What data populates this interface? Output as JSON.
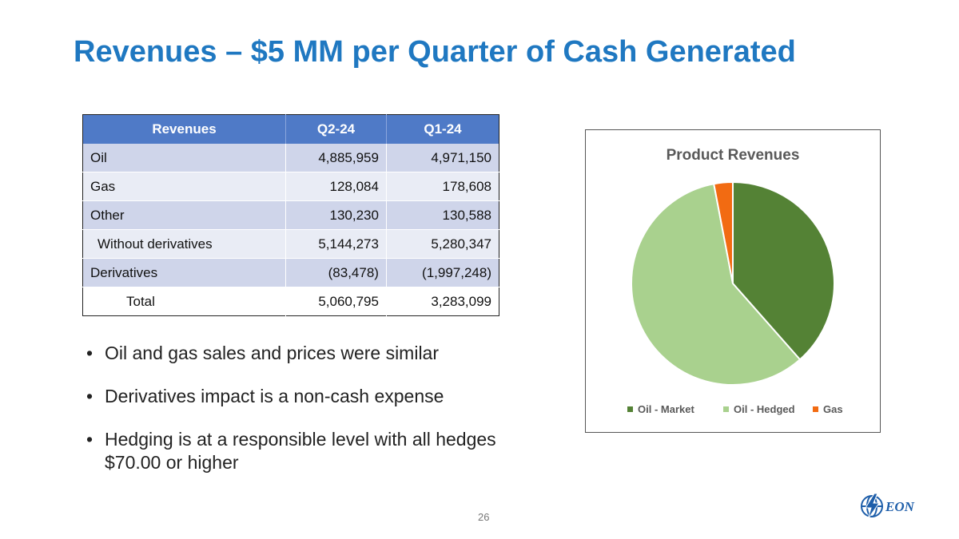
{
  "title": "Revenues – $5 MM per Quarter of Cash Generated",
  "table": {
    "headers": [
      "Revenues",
      "Q2-24",
      "Q1-24"
    ],
    "rows": [
      {
        "label": "Oil",
        "q2": "4,885,959",
        "q1": "4,971,150"
      },
      {
        "label": "Gas",
        "q2": "128,084",
        "q1": "178,608"
      },
      {
        "label": "Other",
        "q2": "130,230",
        "q1": "130,588"
      },
      {
        "label": "Without derivatives",
        "q2": "5,144,273",
        "q1": "5,280,347"
      },
      {
        "label": "Derivatives",
        "q2": "(83,478)",
        "q1": "(1,997,248)"
      },
      {
        "label": "Total",
        "q2": "5,060,795",
        "q1": "3,283,099"
      }
    ]
  },
  "bullets": [
    "Oil and gas sales and prices were similar",
    "Derivatives impact is a non-cash expense",
    "Hedging is at a responsible level with all hedges $70.00 or higher"
  ],
  "bullet_glyph": "•",
  "chart_data": {
    "type": "pie",
    "title": "Product Revenues",
    "categories": [
      "Oil - Market",
      "Oil - Hedged",
      "Gas"
    ],
    "values": [
      38.5,
      58.5,
      3.0
    ],
    "colors": [
      "#548235",
      "#a9d18e",
      "#f26b12"
    ],
    "legend": "bottom"
  },
  "page_number": "26",
  "logo": {
    "text": "EON",
    "icon": "lightning-globe-icon",
    "color": "#1f5faa"
  }
}
